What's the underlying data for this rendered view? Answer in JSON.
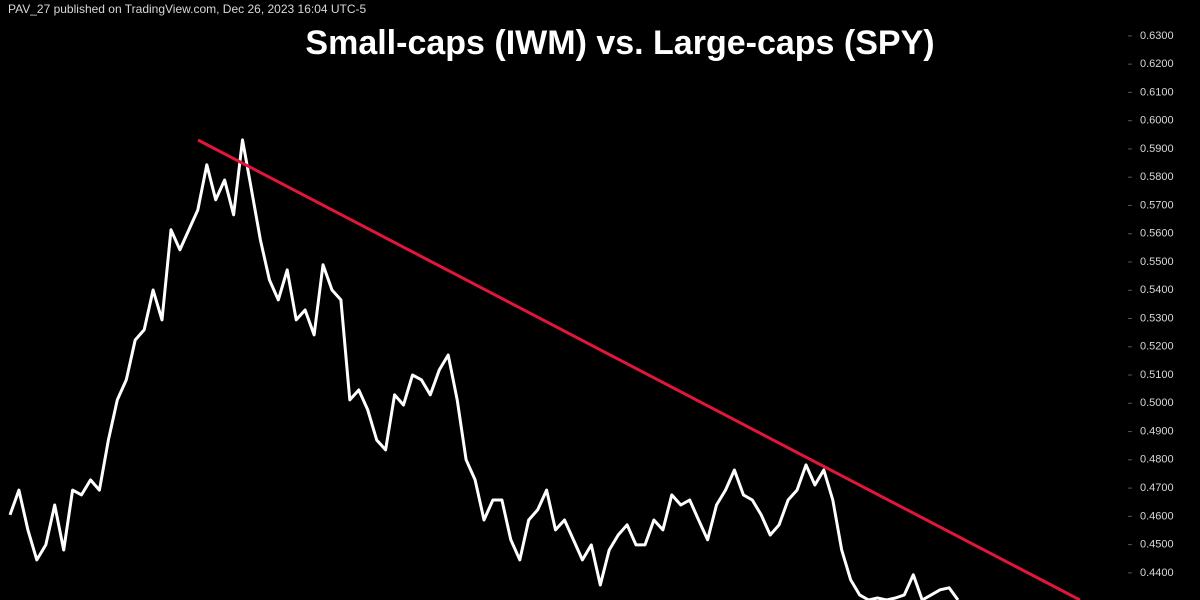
{
  "chart_data": {
    "type": "line",
    "header": "PAV_27 published on TradingView.com, Dec 26, 2023 16:04 UTC-5",
    "title": "Small-caps (IWM) vs. Large-caps (SPY)",
    "color": "#ffffff",
    "values": [
      0.4605,
      0.4693,
      0.4552,
      0.4446,
      0.4499,
      0.464,
      0.4481,
      0.4693,
      0.4676,
      0.4729,
      0.4693,
      0.487,
      0.5012,
      0.5083,
      0.5224,
      0.526,
      0.5401,
      0.5295,
      0.5614,
      0.5543,
      0.5614,
      0.5684,
      0.5844,
      0.572,
      0.579,
      0.5667,
      0.5932,
      0.5755,
      0.5578,
      0.5437,
      0.5366,
      0.5472,
      0.5295,
      0.533,
      0.5242,
      0.549,
      0.5401,
      0.5366,
      0.5012,
      0.5047,
      0.4977,
      0.487,
      0.4835,
      0.503,
      0.4994,
      0.51,
      0.5083,
      0.503,
      0.5118,
      0.5171,
      0.5012,
      0.48,
      0.4729,
      0.4587,
      0.4658,
      0.4658,
      0.4517,
      0.4446,
      0.4587,
      0.4623,
      0.4693,
      0.4552,
      0.4587,
      0.4517,
      0.4446,
      0.4499,
      0.4357,
      0.4481,
      0.4534,
      0.457,
      0.4499,
      0.4499,
      0.4587,
      0.4552,
      0.4676,
      0.464,
      0.4658,
      0.4587,
      0.4517,
      0.464,
      0.4693,
      0.4764,
      0.4676,
      0.4658,
      0.4605,
      0.4534,
      0.457,
      0.4658,
      0.4693,
      0.4782,
      0.4711,
      0.4764,
      0.4658,
      0.4481,
      0.4375,
      0.4322,
      0.4304,
      0.4311,
      0.4304,
      0.4311,
      0.4322,
      0.4393,
      0.4304,
      0.4322,
      0.434,
      0.4347,
      0.4304
    ],
    "ylim": [
      0.4304,
      0.6427
    ],
    "yticks": [
      {
        "value": 0.44,
        "label": "0.4400"
      },
      {
        "value": 0.45,
        "label": "0.4500"
      },
      {
        "value": 0.46,
        "label": "0.4600"
      },
      {
        "value": 0.47,
        "label": "0.4700"
      },
      {
        "value": 0.48,
        "label": "0.4800"
      },
      {
        "value": 0.49,
        "label": "0.4900"
      },
      {
        "value": 0.5,
        "label": "0.5000"
      },
      {
        "value": 0.51,
        "label": "0.5100"
      },
      {
        "value": 0.52,
        "label": "0.5200"
      },
      {
        "value": 0.53,
        "label": "0.5300"
      },
      {
        "value": 0.54,
        "label": "0.5400"
      },
      {
        "value": 0.55,
        "label": "0.5500"
      },
      {
        "value": 0.56,
        "label": "0.5600"
      },
      {
        "value": 0.57,
        "label": "0.5700"
      },
      {
        "value": 0.58,
        "label": "0.5800"
      },
      {
        "value": 0.59,
        "label": "0.5900"
      },
      {
        "value": 0.6,
        "label": "0.6000"
      },
      {
        "value": 0.61,
        "label": "0.6100"
      },
      {
        "value": 0.62,
        "label": "0.6200"
      },
      {
        "value": 0.63,
        "label": "0.6300"
      }
    ]
  }
}
